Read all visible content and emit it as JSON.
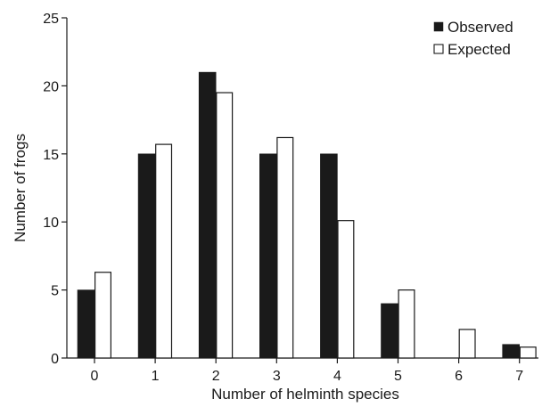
{
  "chart_data": {
    "type": "bar",
    "title": "",
    "xlabel": "Number of helminth species",
    "ylabel": "Number of frogs",
    "categories": [
      "0",
      "1",
      "2",
      "3",
      "4",
      "5",
      "6",
      "7"
    ],
    "series": [
      {
        "name": "Observed",
        "values": [
          5,
          15,
          21,
          15,
          15,
          4,
          0,
          1
        ],
        "color": "#1a1a1a",
        "fill": "solid"
      },
      {
        "name": "Expected",
        "values": [
          6.3,
          15.7,
          19.5,
          16.2,
          10.1,
          5.0,
          2.1,
          0.8
        ],
        "color": "#ffffff",
        "fill": "outline"
      }
    ],
    "ylim": [
      0,
      25
    ],
    "yticks": [
      "0",
      "5",
      "10",
      "15",
      "20",
      "25"
    ],
    "grid": false,
    "legend_position": "top-right"
  }
}
